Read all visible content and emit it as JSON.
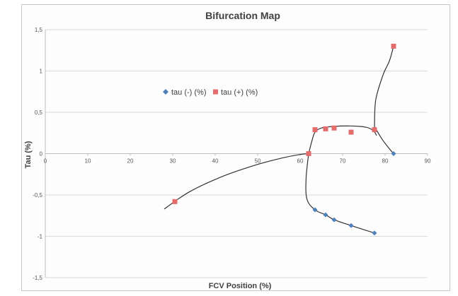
{
  "chart_data": {
    "type": "scatter",
    "title": "Bifurcation Map",
    "xlabel": "FCV Position (%)",
    "ylabel": "Tau (%)",
    "xlim": [
      0,
      90
    ],
    "ylim": [
      -1.5,
      1.5
    ],
    "x_ticks": [
      "0",
      "10",
      "20",
      "30",
      "40",
      "50",
      "60",
      "70",
      "80",
      "90"
    ],
    "y_ticks": [
      "1,5",
      "1",
      "0,5",
      "0",
      "-0,5",
      "-1",
      "-1,5"
    ],
    "y_tick_values": [
      1.5,
      1,
      0.5,
      0,
      -0.5,
      -1,
      -1.5
    ],
    "grid": "horizontal",
    "legend_position": "upper-middle",
    "series": [
      {
        "name": "tau (-) (%)",
        "marker": "diamond",
        "color": "#4f81bd",
        "x": [
          63.5,
          66,
          68,
          72,
          77.5,
          82
        ],
        "y": [
          -0.68,
          -0.74,
          -0.8,
          -0.87,
          -0.96,
          0.0
        ]
      },
      {
        "name": "tau (+) (%)",
        "marker": "square",
        "color": "#e46c6c",
        "x": [
          30.5,
          62,
          63.5,
          66,
          68,
          72,
          77.5,
          82
        ],
        "y": [
          -0.58,
          0.0,
          0.29,
          0.3,
          0.31,
          0.26,
          0.29,
          1.3
        ]
      }
    ],
    "curves": [
      {
        "x": [
          28,
          34,
          42,
          50,
          56,
          60,
          62
        ],
        "y": [
          -0.67,
          -0.46,
          -0.27,
          -0.13,
          -0.05,
          -0.01,
          0.0
        ]
      },
      {
        "x": [
          62,
          62.8,
          63.5,
          65,
          68,
          72,
          75.5,
          77.2,
          78
        ],
        "y": [
          0.0,
          0.16,
          0.26,
          0.31,
          0.33,
          0.335,
          0.32,
          0.28,
          0.22
        ]
      },
      {
        "x": [
          77.5,
          78.5,
          79.5,
          81,
          82
        ],
        "y": [
          0.33,
          0.24,
          0.16,
          0.06,
          0.0
        ]
      },
      {
        "x": [
          77.5,
          77.8,
          79.5,
          81,
          82
        ],
        "y": [
          0.33,
          0.65,
          0.95,
          1.12,
          1.3
        ]
      },
      {
        "x": [
          62,
          61.4,
          61.6,
          63.5,
          66,
          68,
          72,
          77.5
        ],
        "y": [
          0.0,
          -0.3,
          -0.55,
          -0.68,
          -0.74,
          -0.8,
          -0.87,
          -0.96
        ]
      }
    ]
  }
}
